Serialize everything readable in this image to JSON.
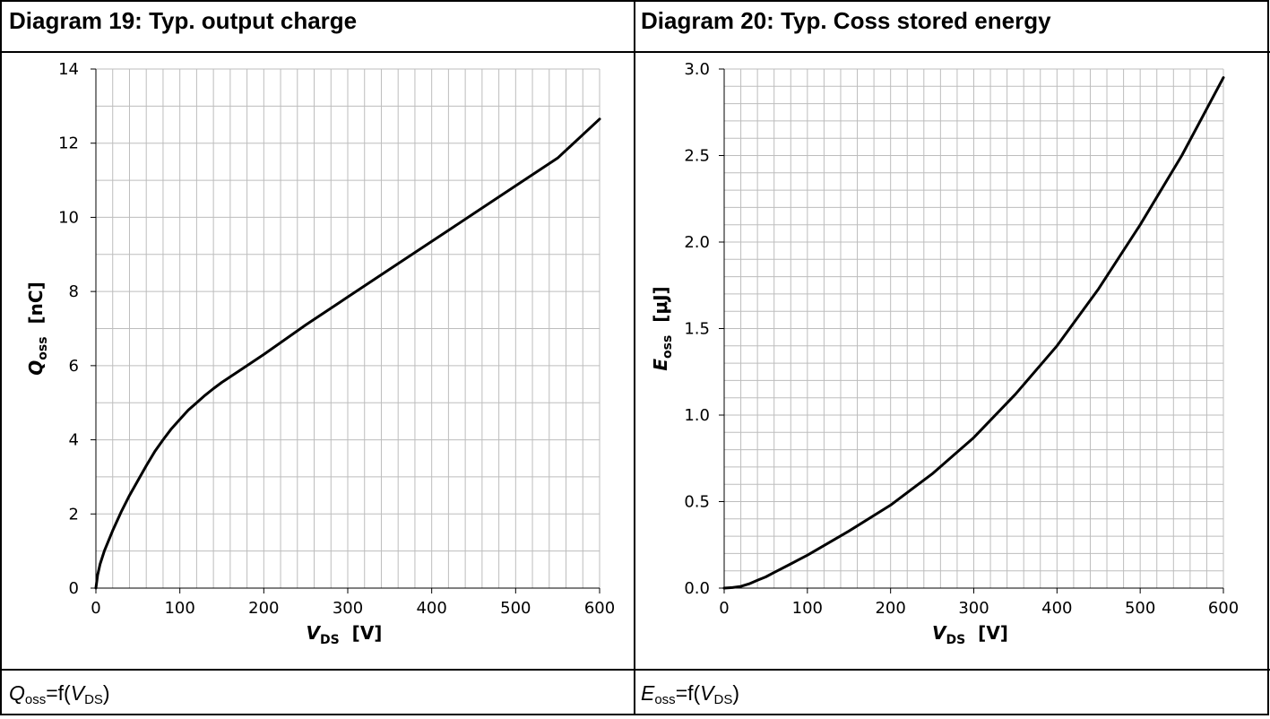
{
  "panels": [
    {
      "title": "Diagram 19: Typ. output charge",
      "caption": {
        "sym": "Q",
        "sym_sub": "oss",
        "mid": "=f(",
        "arg": "V",
        "arg_sub": "DS",
        "end": ")"
      }
    },
    {
      "title": "Diagram 20: Typ. Coss stored energy",
      "caption": {
        "sym": "E",
        "sym_sub": "oss",
        "mid": "=f(",
        "arg": "V",
        "arg_sub": "DS",
        "end": ")"
      }
    }
  ],
  "chart_data": [
    {
      "type": "line",
      "title": "Diagram 19: Typ. output charge",
      "xlabel": {
        "sym": "V",
        "sub": "DS",
        "unit": "[V]"
      },
      "ylabel": {
        "sym": "Q",
        "sub": "oss",
        "unit": "[nC]"
      },
      "xlim": [
        0,
        600
      ],
      "ylim": [
        0,
        14
      ],
      "xticks": [
        0,
        100,
        200,
        300,
        400,
        500,
        600
      ],
      "xtick_labels": [
        "0",
        "100",
        "200",
        "300",
        "400",
        "500",
        "600"
      ],
      "yticks": [
        0,
        2,
        4,
        6,
        8,
        10,
        12,
        14
      ],
      "ytick_labels": [
        "0",
        "2",
        "4",
        "6",
        "8",
        "10",
        "12",
        "14"
      ],
      "grid": true,
      "series": [
        {
          "color": "#000000",
          "x": [
            0,
            2,
            5,
            10,
            20,
            30,
            40,
            50,
            60,
            70,
            80,
            90,
            100,
            110,
            120,
            130,
            140,
            150,
            170,
            200,
            250,
            300,
            350,
            400,
            450,
            500,
            550,
            600
          ],
          "y": [
            0,
            0.35,
            0.65,
            1.0,
            1.55,
            2.05,
            2.5,
            2.9,
            3.3,
            3.68,
            4.0,
            4.3,
            4.55,
            4.8,
            5.0,
            5.2,
            5.38,
            5.55,
            5.85,
            6.3,
            7.1,
            7.85,
            8.6,
            9.35,
            10.1,
            10.85,
            11.6,
            12.65
          ]
        }
      ]
    },
    {
      "type": "line",
      "title": "Diagram 20: Typ. Coss stored energy",
      "xlabel": {
        "sym": "V",
        "sub": "DS",
        "unit": "[V]"
      },
      "ylabel": {
        "sym": "E",
        "sub": "oss",
        "unit": "[μJ]"
      },
      "xlim": [
        0,
        600
      ],
      "ylim": [
        0,
        3.0
      ],
      "xticks": [
        0,
        100,
        200,
        300,
        400,
        500,
        600
      ],
      "xtick_labels": [
        "0",
        "100",
        "200",
        "300",
        "400",
        "500",
        "600"
      ],
      "yticks": [
        0,
        0.5,
        1.0,
        1.5,
        2.0,
        2.5,
        3.0
      ],
      "ytick_labels": [
        "0.0",
        "0.5",
        "1.0",
        "1.5",
        "2.0",
        "2.5",
        "3.0"
      ],
      "grid": true,
      "series": [
        {
          "color": "#000000",
          "x": [
            0,
            10,
            20,
            30,
            40,
            50,
            60,
            80,
            100,
            150,
            200,
            250,
            300,
            350,
            400,
            450,
            500,
            550,
            600
          ],
          "y": [
            0,
            0.003,
            0.01,
            0.025,
            0.045,
            0.065,
            0.09,
            0.14,
            0.19,
            0.33,
            0.48,
            0.66,
            0.87,
            1.12,
            1.4,
            1.73,
            2.1,
            2.5,
            2.95
          ]
        }
      ]
    }
  ]
}
